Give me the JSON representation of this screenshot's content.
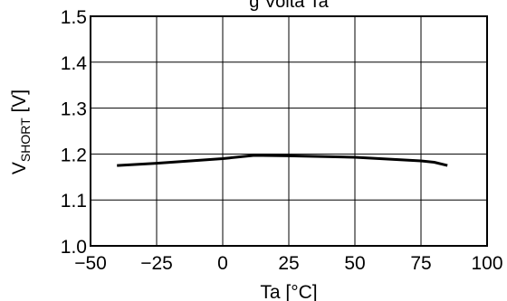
{
  "chart_data": {
    "type": "line",
    "title": "g Volta Ta",
    "xlabel": "Ta [°C]",
    "ylabel_main": "V",
    "ylabel_sub": "SHORT",
    "ylabel_unit": " [V]",
    "xlim": [
      -50,
      100
    ],
    "ylim": [
      1.0,
      1.5
    ],
    "grid": true,
    "x_ticks": [
      -50,
      -25,
      0,
      25,
      50,
      75,
      100
    ],
    "x_tick_labels": [
      "−50",
      "−25",
      "0",
      "25",
      "50",
      "75",
      "100"
    ],
    "y_ticks": [
      1.0,
      1.1,
      1.2,
      1.3,
      1.4,
      1.5
    ],
    "y_tick_labels": [
      "1.0",
      "1.1",
      "1.2",
      "1.3",
      "1.4",
      "1.5"
    ],
    "series": [
      {
        "x": [
          -40,
          -25,
          0,
          12,
          25,
          50,
          75,
          80,
          85
        ],
        "y": [
          1.175,
          1.18,
          1.19,
          1.197,
          1.196,
          1.193,
          1.185,
          1.182,
          1.175
        ]
      }
    ]
  }
}
